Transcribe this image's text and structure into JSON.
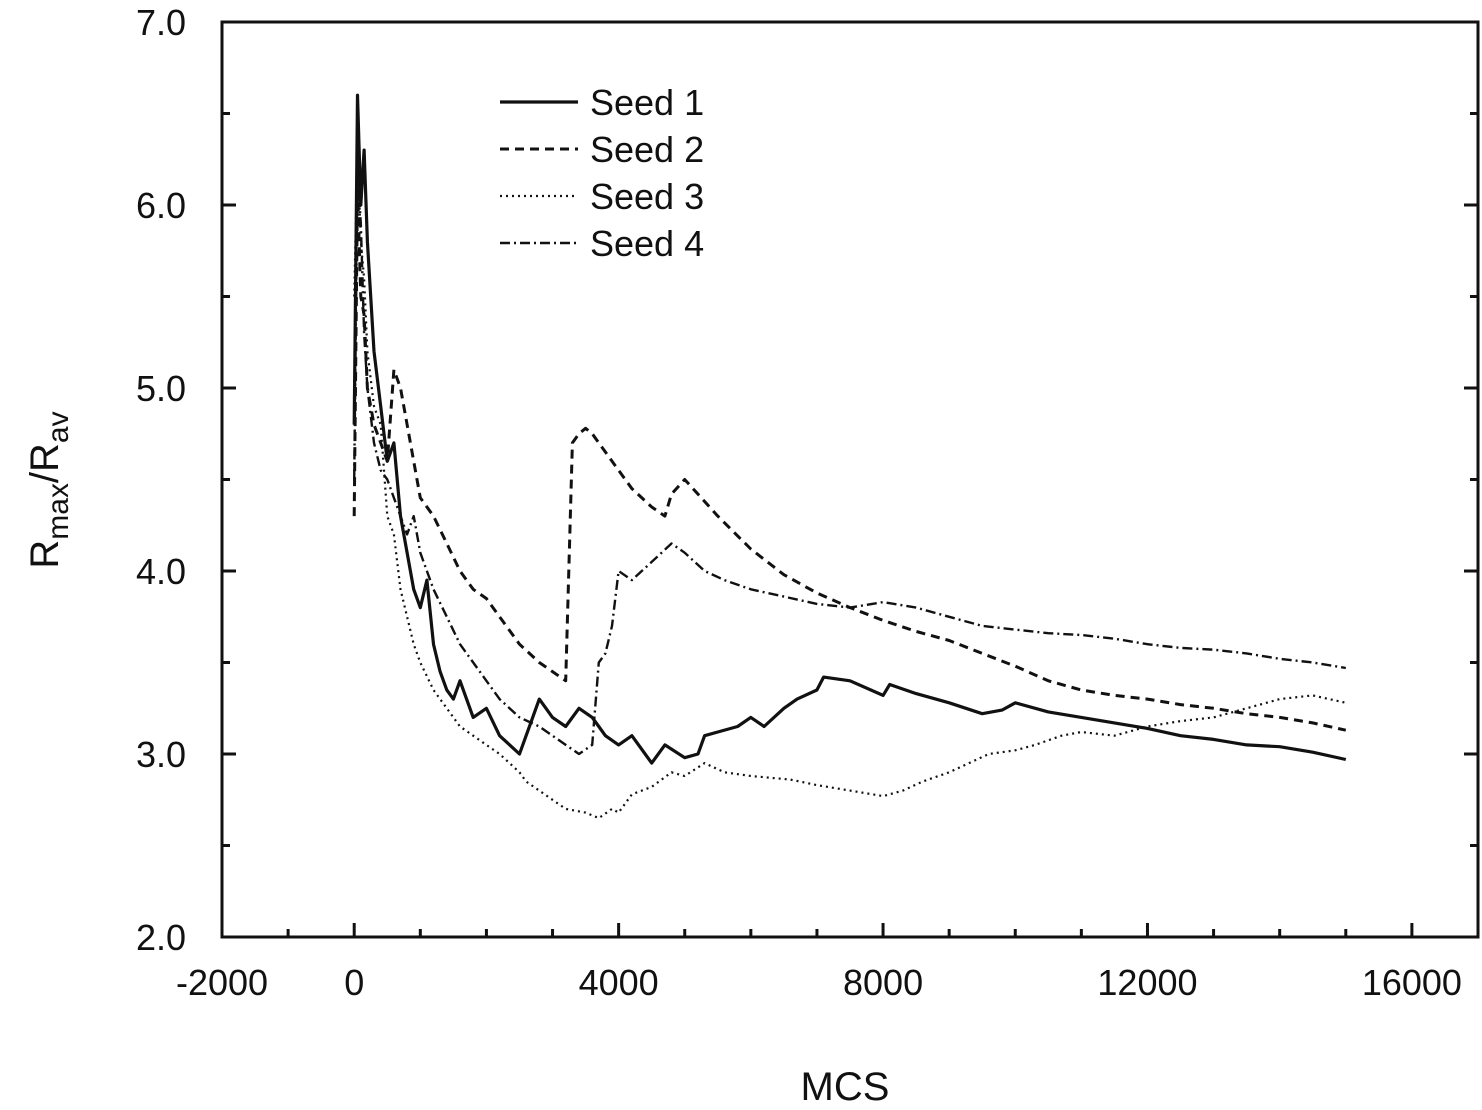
{
  "chart_data": {
    "type": "line",
    "title": "",
    "xlabel": "MCS",
    "ylabel_main": "R",
    "ylabel_sub1": "max",
    "ylabel_slash": "/R",
    "ylabel_sub2": "av",
    "xlim": [
      -2000,
      17000
    ],
    "ylim": [
      2.0,
      7.0
    ],
    "x_ticks": [
      -2000,
      0,
      4000,
      8000,
      12000,
      16000
    ],
    "x_tick_labels": [
      "-2000",
      "0",
      "4000",
      "8000",
      "12000",
      "16000"
    ],
    "y_ticks": [
      2.0,
      3.0,
      4.0,
      5.0,
      6.0,
      7.0
    ],
    "y_tick_labels": [
      "2.0",
      "3.0",
      "4.0",
      "5.0",
      "6.0",
      "7.0"
    ],
    "grid": false,
    "legend_position": "top-left",
    "series": [
      {
        "name": "Seed 1",
        "style": "solid",
        "x": [
          0,
          50,
          100,
          150,
          200,
          300,
          400,
          500,
          600,
          700,
          800,
          900,
          1000,
          1100,
          1200,
          1300,
          1400,
          1500,
          1600,
          1800,
          2000,
          2200,
          2500,
          2700,
          2800,
          3000,
          3200,
          3400,
          3600,
          3700,
          3800,
          4000,
          4200,
          4500,
          4700,
          5000,
          5200,
          5300,
          5500,
          5800,
          6000,
          6200,
          6500,
          6700,
          7000,
          7100,
          7500,
          8000,
          8100,
          8500,
          9000,
          9500,
          9800,
          10000,
          10500,
          11000,
          11500,
          12000,
          12500,
          13000,
          13500,
          14000,
          14500,
          15000
        ],
        "y": [
          4.8,
          6.6,
          6.0,
          6.3,
          5.8,
          5.2,
          4.9,
          4.6,
          4.7,
          4.3,
          4.1,
          3.9,
          3.8,
          3.95,
          3.6,
          3.45,
          3.35,
          3.3,
          3.4,
          3.2,
          3.25,
          3.1,
          3.0,
          3.2,
          3.3,
          3.2,
          3.15,
          3.25,
          3.2,
          3.15,
          3.1,
          3.05,
          3.1,
          2.95,
          3.05,
          2.98,
          3.0,
          3.1,
          3.12,
          3.15,
          3.2,
          3.15,
          3.25,
          3.3,
          3.35,
          3.42,
          3.4,
          3.32,
          3.38,
          3.33,
          3.28,
          3.22,
          3.24,
          3.28,
          3.23,
          3.2,
          3.17,
          3.14,
          3.1,
          3.08,
          3.05,
          3.04,
          3.01,
          2.97
        ]
      },
      {
        "name": "Seed 2",
        "style": "dashed",
        "x": [
          0,
          50,
          100,
          150,
          200,
          300,
          400,
          500,
          600,
          700,
          800,
          900,
          1000,
          1200,
          1400,
          1600,
          1800,
          2000,
          2200,
          2500,
          2800,
          3000,
          3200,
          3300,
          3400,
          3500,
          3600,
          3800,
          4000,
          4200,
          4500,
          4700,
          4800,
          5000,
          5200,
          5500,
          6000,
          6500,
          7000,
          7500,
          8000,
          8500,
          9000,
          9500,
          10000,
          10500,
          11000,
          11500,
          12000,
          12500,
          13000,
          13500,
          14000,
          14500,
          15000
        ],
        "y": [
          4.3,
          6.1,
          5.5,
          5.4,
          5.0,
          4.8,
          4.7,
          4.6,
          5.1,
          5.0,
          4.8,
          4.6,
          4.4,
          4.3,
          4.15,
          4.0,
          3.9,
          3.85,
          3.75,
          3.6,
          3.5,
          3.45,
          3.4,
          4.7,
          4.75,
          4.78,
          4.75,
          4.65,
          4.55,
          4.45,
          4.35,
          4.3,
          4.42,
          4.5,
          4.42,
          4.3,
          4.12,
          3.98,
          3.88,
          3.8,
          3.73,
          3.67,
          3.62,
          3.55,
          3.48,
          3.4,
          3.35,
          3.32,
          3.3,
          3.27,
          3.25,
          3.22,
          3.2,
          3.17,
          3.13
        ]
      },
      {
        "name": "Seed 3",
        "style": "dotted",
        "x": [
          0,
          50,
          100,
          150,
          200,
          300,
          400,
          500,
          600,
          700,
          800,
          900,
          1000,
          1200,
          1400,
          1600,
          1800,
          2000,
          2200,
          2500,
          2600,
          2800,
          3000,
          3200,
          3500,
          3700,
          3900,
          4000,
          4200,
          4500,
          4800,
          5000,
          5300,
          5600,
          6000,
          6300,
          6600,
          7000,
          7500,
          8000,
          8300,
          8600,
          9000,
          9300,
          9600,
          10000,
          10300,
          10700,
          11000,
          11500,
          12000,
          12500,
          13000,
          13500,
          14000,
          14500,
          15000
        ],
        "y": [
          5.5,
          6.3,
          5.8,
          5.6,
          5.2,
          4.9,
          4.8,
          4.3,
          4.2,
          3.9,
          3.75,
          3.6,
          3.5,
          3.35,
          3.25,
          3.15,
          3.1,
          3.05,
          3.0,
          2.9,
          2.85,
          2.8,
          2.75,
          2.7,
          2.68,
          2.65,
          2.7,
          2.68,
          2.78,
          2.82,
          2.9,
          2.88,
          2.95,
          2.9,
          2.88,
          2.87,
          2.86,
          2.83,
          2.8,
          2.77,
          2.8,
          2.85,
          2.9,
          2.95,
          3.0,
          3.02,
          3.05,
          3.1,
          3.12,
          3.1,
          3.15,
          3.18,
          3.2,
          3.25,
          3.3,
          3.32,
          3.28
        ]
      },
      {
        "name": "Seed 4",
        "style": "dashdot",
        "x": [
          0,
          50,
          100,
          150,
          200,
          300,
          400,
          500,
          600,
          700,
          800,
          900,
          1000,
          1200,
          1400,
          1600,
          1800,
          2000,
          2200,
          2500,
          2800,
          3000,
          3200,
          3400,
          3600,
          3700,
          3800,
          3900,
          4000,
          4200,
          4500,
          4800,
          5000,
          5300,
          5600,
          6000,
          6500,
          7000,
          7500,
          8000,
          8500,
          9000,
          9500,
          10000,
          10500,
          11000,
          11500,
          12000,
          12500,
          13000,
          13500,
          14000,
          14500,
          15000
        ],
        "y": [
          4.5,
          6.2,
          5.9,
          5.3,
          5.0,
          4.7,
          4.55,
          4.5,
          4.4,
          4.3,
          4.2,
          4.3,
          4.1,
          3.9,
          3.75,
          3.6,
          3.5,
          3.4,
          3.3,
          3.2,
          3.15,
          3.1,
          3.05,
          3.0,
          3.05,
          3.5,
          3.55,
          3.7,
          4.0,
          3.95,
          4.05,
          4.15,
          4.1,
          4.0,
          3.95,
          3.9,
          3.86,
          3.82,
          3.8,
          3.83,
          3.8,
          3.75,
          3.7,
          3.68,
          3.66,
          3.65,
          3.63,
          3.6,
          3.58,
          3.57,
          3.55,
          3.52,
          3.5,
          3.47
        ]
      }
    ]
  }
}
